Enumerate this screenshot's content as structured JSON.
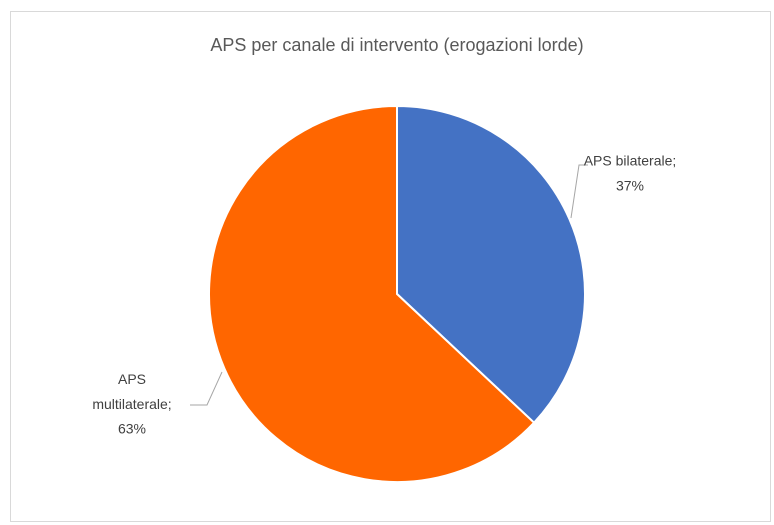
{
  "chart_data": {
    "type": "pie",
    "title": "APS per canale di intervento (erogazioni lorde)",
    "categories": [
      "APS bilaterale;",
      "APS multilaterale;"
    ],
    "values": [
      37,
      63
    ],
    "value_labels": [
      "37%",
      "63%"
    ],
    "colors": [
      "#4472c4",
      "#ff6600"
    ]
  }
}
